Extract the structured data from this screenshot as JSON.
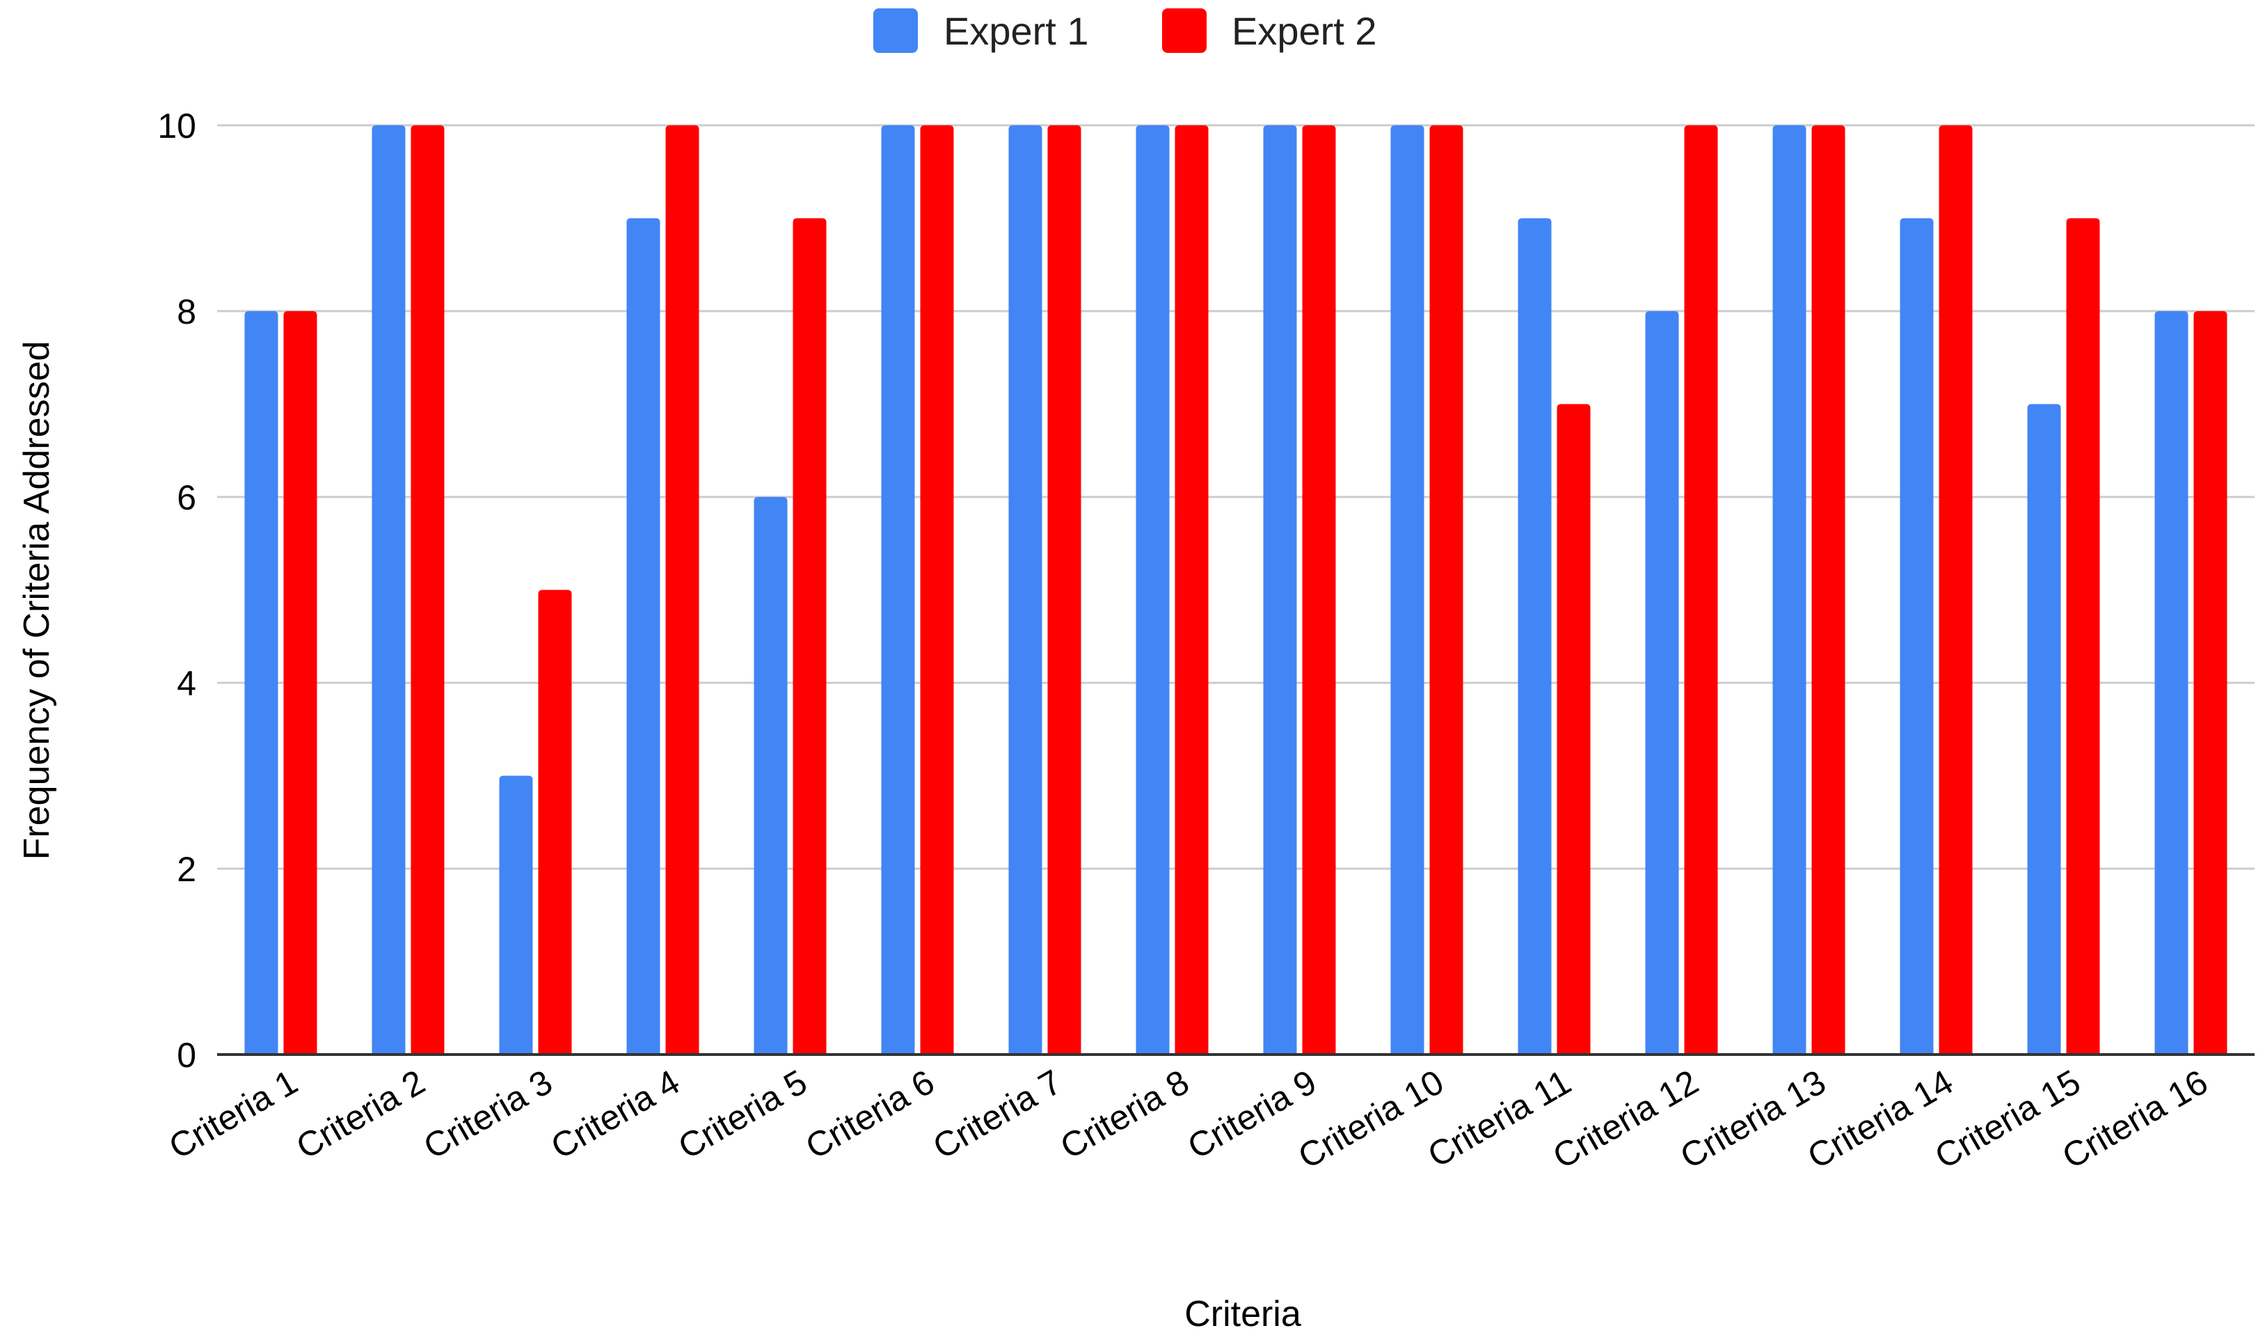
{
  "chart_data": {
    "type": "bar",
    "title": "",
    "xlabel": "Criteria",
    "ylabel": "Frequency of Criteria Addressed",
    "ylim": [
      0,
      10
    ],
    "yticks": [
      0,
      2,
      4,
      6,
      8,
      10
    ],
    "grid": true,
    "legend_position": "top-center",
    "categories": [
      "Criteria 1",
      "Criteria 2",
      "Criteria 3",
      "Criteria 4",
      "Criteria 5",
      "Criteria 6",
      "Criteria 7",
      "Criteria 8",
      "Criteria 9",
      "Criteria 10",
      "Criteria 11",
      "Criteria 12",
      "Criteria 13",
      "Criteria 14",
      "Criteria 15",
      "Criteria 16"
    ],
    "series": [
      {
        "name": "Expert 1",
        "color": "#4285f4",
        "values": [
          8,
          10,
          3,
          9,
          6,
          10,
          10,
          10,
          10,
          10,
          9,
          8,
          10,
          9,
          7,
          8
        ]
      },
      {
        "name": "Expert 2",
        "color": "#ff0000",
        "values": [
          8,
          10,
          5,
          10,
          9,
          10,
          10,
          10,
          10,
          10,
          7,
          10,
          10,
          10,
          9,
          8
        ]
      }
    ]
  }
}
